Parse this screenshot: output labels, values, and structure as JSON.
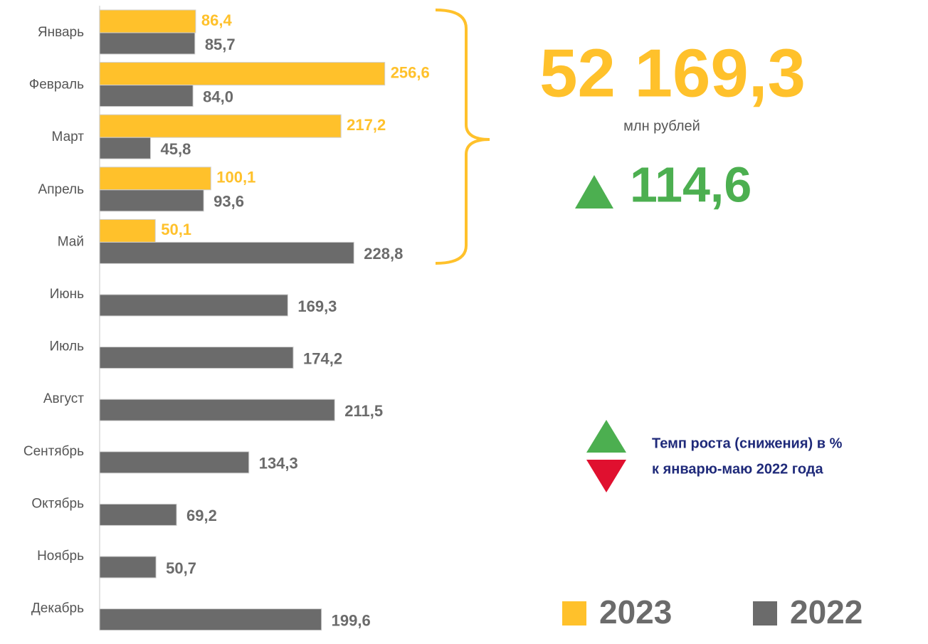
{
  "chart_data": {
    "type": "bar",
    "orientation": "horizontal",
    "categories": [
      "Январь",
      "Февраль",
      "Март",
      "Апрель",
      "Май",
      "Июнь",
      "Июль",
      "Август",
      "Сентябрь",
      "Октябрь",
      "Ноябрь",
      "Декабрь"
    ],
    "series": [
      {
        "name": "2023",
        "color": "#FFC12B",
        "values": [
          86.4,
          256.6,
          217.2,
          100.1,
          50.1,
          null,
          null,
          null,
          null,
          null,
          null,
          null
        ],
        "value_labels": [
          "86,4",
          "256,6",
          "217,2",
          "100,1",
          "50,1",
          null,
          null,
          null,
          null,
          null,
          null,
          null
        ]
      },
      {
        "name": "2022",
        "color": "#6B6B6B",
        "values": [
          85.7,
          84.0,
          45.8,
          93.6,
          228.8,
          169.3,
          174.2,
          211.5,
          134.3,
          69.2,
          50.7,
          199.6
        ],
        "value_labels": [
          "85,7",
          "84,0",
          "45,8",
          "93,6",
          "228,8",
          "169,3",
          "174,2",
          "211,5",
          "134,3",
          "69,2",
          "50,7",
          "199,6"
        ]
      }
    ],
    "xlim": [
      0,
      260
    ],
    "legend": "bottom-right",
    "total": "52 169,3",
    "total_unit": "млн рублей",
    "growth": "114,6",
    "growth_note": [
      "Темп роста (снижения) в %",
      "к январю-маю 2022 года"
    ]
  }
}
